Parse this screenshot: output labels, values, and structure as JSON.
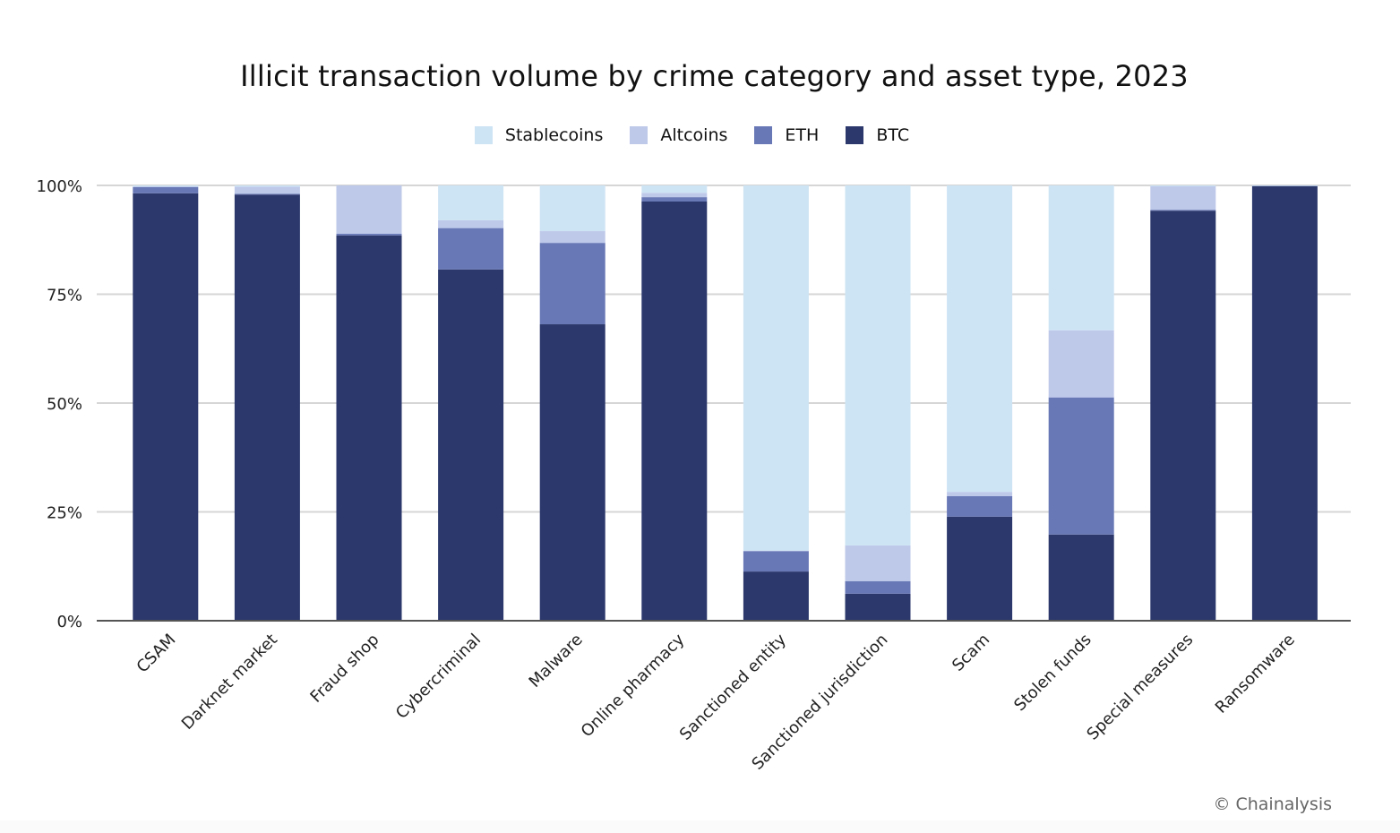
{
  "chart_data": {
    "type": "bar",
    "stacked": true,
    "title": "Illicit transaction volume by crime category and asset type, 2023",
    "xlabel": "",
    "ylabel": "",
    "ylim": [
      0,
      100
    ],
    "yticks": [
      "0%",
      "25%",
      "50%",
      "75%",
      "100%"
    ],
    "ytick_values": [
      0,
      25,
      50,
      75,
      100
    ],
    "grid": true,
    "legend_position": "top-center",
    "categories": [
      "CSAM",
      "Darknet market",
      "Fraud shop",
      "Cybercriminal",
      "Malware",
      "Online pharmacy",
      "Sanctioned entity",
      "Sanctioned jurisdiction",
      "Scam",
      "Stolen funds",
      "Special measures",
      "Ransomware"
    ],
    "series": [
      {
        "name": "BTC",
        "color": "#2c386c",
        "values": [
          98.2,
          97.9,
          88.5,
          80.7,
          68.1,
          96.3,
          11.3,
          6.2,
          23.9,
          19.8,
          94.2,
          99.8
        ]
      },
      {
        "name": "ETH",
        "color": "#6878b6",
        "values": [
          1.4,
          0.2,
          0.4,
          9.5,
          18.7,
          1.0,
          4.7,
          2.9,
          4.7,
          31.5,
          0.2,
          0.1
        ]
      },
      {
        "name": "Altcoins",
        "color": "#bec9ea",
        "values": [
          0.2,
          1.6,
          11.1,
          1.8,
          2.7,
          1.0,
          0.1,
          8.2,
          1.0,
          15.4,
          5.4,
          0.05
        ]
      },
      {
        "name": "Stablecoins",
        "color": "#cde4f4",
        "values": [
          0.2,
          0.3,
          0.0,
          8.0,
          10.5,
          1.7,
          83.9,
          82.7,
          70.4,
          33.3,
          0.2,
          0.05
        ]
      }
    ],
    "legend_order": [
      "Stablecoins",
      "Altcoins",
      "ETH",
      "BTC"
    ]
  },
  "credit": "© Chainalysis"
}
